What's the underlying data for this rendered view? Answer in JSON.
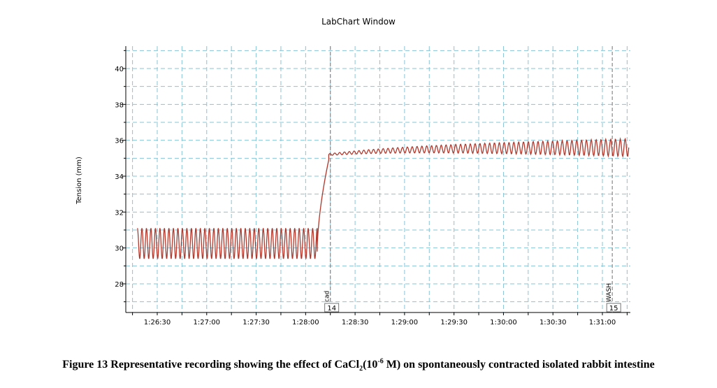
{
  "window": {
    "title": "LabChart Window"
  },
  "caption": {
    "part1": "Figure 13 Representative recording showing the effect of CaCl",
    "sub": "2",
    "part2": "(10",
    "sup": "-6",
    "part3": " M) on spontaneously contracted isolated rabbit intestine"
  },
  "colors": {
    "trace": "#b03a2e",
    "grid": "#87c4d6",
    "axis": "#000000",
    "marker": "#888888"
  },
  "chart_data": {
    "type": "line",
    "title": "LabChart Window",
    "xlabel": "",
    "ylabel": "Tension (mm)",
    "ylim": [
      26.5,
      41.5
    ],
    "xlim_seconds_label": "time of day h:mm:ss",
    "yticks": [
      28,
      30,
      32,
      34,
      36,
      38,
      40
    ],
    "xticks": [
      "1:26:30",
      "1:27:00",
      "1:27:30",
      "1:28:00",
      "1:28:30",
      "1:29:00",
      "1:29:30",
      "1:30:00",
      "1:30:30",
      "1:31:00"
    ],
    "grid": true,
    "series": [
      {
        "segments": [
          {
            "from": "1:26:18",
            "to": "1:28:07",
            "pattern": "oscillation",
            "low": 29.4,
            "high": 31.1,
            "cycles": 40
          },
          {
            "from": "1:28:07",
            "to": "1:28:14",
            "pattern": "rise",
            "start": 29.8,
            "end": 34.9
          },
          {
            "from": "1:28:14",
            "to": "1:31:16",
            "pattern": "plateau-oscillation",
            "start": 35.2,
            "end": 35.6,
            "amplitude_start": 0.05,
            "amplitude_end": 0.5,
            "cycles": 62
          }
        ]
      }
    ],
    "markers": [
      {
        "time": "1:28:15",
        "label": "cad",
        "comment_number": "14"
      },
      {
        "time": "1:31:06",
        "label": "WASH",
        "comment_number": "15"
      }
    ]
  }
}
